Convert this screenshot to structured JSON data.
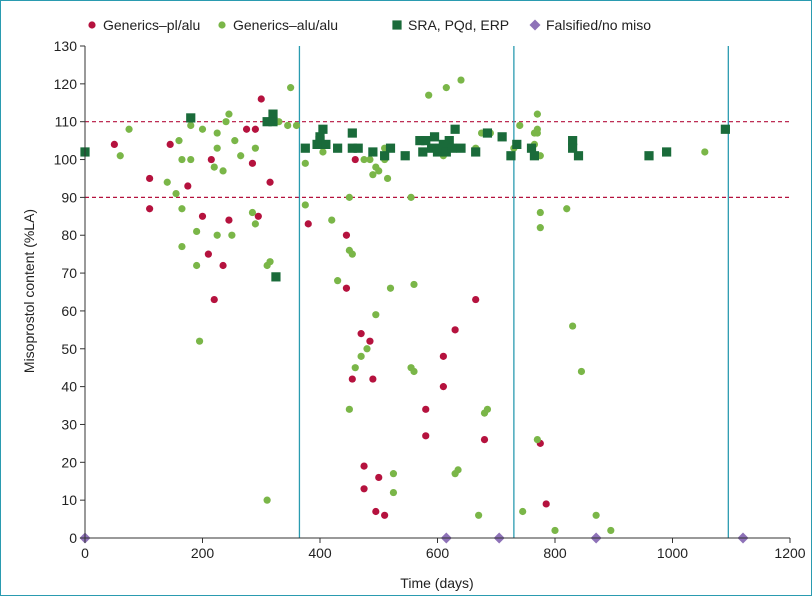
{
  "chart_data": {
    "type": "scatter",
    "title": "",
    "xlabel": "Time (days)",
    "ylabel": "Misoprostol content (%LA)",
    "xlim": [
      0,
      1200
    ],
    "ylim": [
      0,
      130
    ],
    "x_ticks": [
      0,
      200,
      400,
      600,
      800,
      1000,
      1200
    ],
    "y_ticks": [
      0,
      10,
      20,
      30,
      40,
      50,
      60,
      70,
      80,
      90,
      100,
      110,
      120,
      130
    ],
    "grid": false,
    "legend_position": "top",
    "reference_lines_y": [
      90,
      110
    ],
    "reference_lines_x": [
      365,
      730,
      1095
    ],
    "series": [
      {
        "name": "Generics–pl/alu",
        "color": "#b5123e",
        "marker": "circle",
        "points": [
          [
            50,
            104
          ],
          [
            110,
            95
          ],
          [
            110,
            87
          ],
          [
            145,
            104
          ],
          [
            175,
            93
          ],
          [
            200,
            85
          ],
          [
            210,
            75
          ],
          [
            215,
            100
          ],
          [
            220,
            63
          ],
          [
            235,
            72
          ],
          [
            245,
            84
          ],
          [
            275,
            108
          ],
          [
            285,
            99
          ],
          [
            290,
            108
          ],
          [
            295,
            85
          ],
          [
            300,
            116
          ],
          [
            315,
            94
          ],
          [
            380,
            83
          ],
          [
            445,
            80
          ],
          [
            445,
            66
          ],
          [
            455,
            42
          ],
          [
            460,
            100
          ],
          [
            470,
            54
          ],
          [
            475,
            19
          ],
          [
            475,
            13
          ],
          [
            485,
            52
          ],
          [
            490,
            42
          ],
          [
            495,
            7
          ],
          [
            500,
            16
          ],
          [
            510,
            6
          ],
          [
            580,
            27
          ],
          [
            580,
            34
          ],
          [
            610,
            48
          ],
          [
            610,
            40
          ],
          [
            630,
            55
          ],
          [
            665,
            63
          ],
          [
            680,
            26
          ],
          [
            775,
            25
          ],
          [
            785,
            9
          ]
        ]
      },
      {
        "name": "Generics–alu/alu",
        "color": "#7ab648",
        "marker": "circle",
        "points": [
          [
            60,
            101
          ],
          [
            75,
            108
          ],
          [
            140,
            94
          ],
          [
            155,
            91
          ],
          [
            160,
            105
          ],
          [
            165,
            100
          ],
          [
            165,
            87
          ],
          [
            165,
            77
          ],
          [
            180,
            109
          ],
          [
            180,
            100
          ],
          [
            190,
            81
          ],
          [
            190,
            72
          ],
          [
            195,
            52
          ],
          [
            200,
            108
          ],
          [
            220,
            98
          ],
          [
            225,
            103
          ],
          [
            225,
            107
          ],
          [
            225,
            80
          ],
          [
            235,
            97
          ],
          [
            240,
            110
          ],
          [
            245,
            112
          ],
          [
            250,
            80
          ],
          [
            255,
            105
          ],
          [
            265,
            101
          ],
          [
            285,
            86
          ],
          [
            290,
            103
          ],
          [
            290,
            83
          ],
          [
            310,
            72
          ],
          [
            310,
            10
          ],
          [
            315,
            73
          ],
          [
            330,
            110
          ],
          [
            345,
            109
          ],
          [
            350,
            119
          ],
          [
            360,
            109
          ],
          [
            375,
            99
          ],
          [
            375,
            88
          ],
          [
            405,
            102
          ],
          [
            420,
            84
          ],
          [
            430,
            68
          ],
          [
            450,
            90
          ],
          [
            450,
            76
          ],
          [
            450,
            34
          ],
          [
            455,
            75
          ],
          [
            460,
            45
          ],
          [
            470,
            48
          ],
          [
            475,
            100
          ],
          [
            480,
            50
          ],
          [
            485,
            100
          ],
          [
            490,
            96
          ],
          [
            495,
            98
          ],
          [
            495,
            59
          ],
          [
            500,
            97
          ],
          [
            510,
            103
          ],
          [
            510,
            100
          ],
          [
            515,
            95
          ],
          [
            520,
            66
          ],
          [
            525,
            17
          ],
          [
            525,
            12
          ],
          [
            555,
            90
          ],
          [
            555,
            45
          ],
          [
            560,
            67
          ],
          [
            560,
            44
          ],
          [
            585,
            117
          ],
          [
            600,
            102
          ],
          [
            610,
            101
          ],
          [
            615,
            119
          ],
          [
            620,
            104
          ],
          [
            630,
            17
          ],
          [
            635,
            18
          ],
          [
            640,
            121
          ],
          [
            665,
            103
          ],
          [
            670,
            6
          ],
          [
            675,
            107
          ],
          [
            680,
            33
          ],
          [
            685,
            34
          ],
          [
            690,
            107
          ],
          [
            730,
            103
          ],
          [
            740,
            109
          ],
          [
            745,
            7
          ],
          [
            765,
            107
          ],
          [
            765,
            104
          ],
          [
            770,
            112
          ],
          [
            770,
            108
          ],
          [
            770,
            107
          ],
          [
            770,
            26
          ],
          [
            775,
            101
          ],
          [
            775,
            86
          ],
          [
            775,
            82
          ],
          [
            800,
            2
          ],
          [
            820,
            87
          ],
          [
            830,
            56
          ],
          [
            845,
            44
          ],
          [
            870,
            6
          ],
          [
            895,
            2
          ],
          [
            1055,
            102
          ]
        ]
      },
      {
        "name": "SRA, PQd, ERP",
        "color": "#1a6b3a",
        "marker": "square",
        "points": [
          [
            0,
            102
          ],
          [
            180,
            111
          ],
          [
            310,
            110
          ],
          [
            320,
            112
          ],
          [
            320,
            110
          ],
          [
            325,
            69
          ],
          [
            375,
            103
          ],
          [
            395,
            104
          ],
          [
            400,
            106
          ],
          [
            400,
            105
          ],
          [
            405,
            108
          ],
          [
            410,
            104
          ],
          [
            430,
            103
          ],
          [
            455,
            107
          ],
          [
            455,
            103
          ],
          [
            465,
            103
          ],
          [
            490,
            102
          ],
          [
            510,
            101
          ],
          [
            520,
            103
          ],
          [
            545,
            101
          ],
          [
            570,
            105
          ],
          [
            575,
            102
          ],
          [
            580,
            105
          ],
          [
            590,
            103
          ],
          [
            595,
            106
          ],
          [
            600,
            102
          ],
          [
            605,
            103
          ],
          [
            610,
            104
          ],
          [
            615,
            102
          ],
          [
            620,
            105
          ],
          [
            625,
            103
          ],
          [
            630,
            108
          ],
          [
            640,
            103
          ],
          [
            665,
            102
          ],
          [
            685,
            107
          ],
          [
            710,
            106
          ],
          [
            725,
            101
          ],
          [
            735,
            104
          ],
          [
            760,
            103
          ],
          [
            765,
            101
          ],
          [
            830,
            105
          ],
          [
            830,
            103
          ],
          [
            840,
            101
          ],
          [
            960,
            101
          ],
          [
            990,
            102
          ],
          [
            1090,
            108
          ]
        ]
      },
      {
        "name": "Falsified/no miso",
        "color": "#8e72b8",
        "marker": "diamond",
        "points": [
          [
            0,
            0
          ],
          [
            615,
            0
          ],
          [
            705,
            0
          ],
          [
            870,
            0
          ],
          [
            1120,
            0
          ]
        ]
      }
    ]
  }
}
